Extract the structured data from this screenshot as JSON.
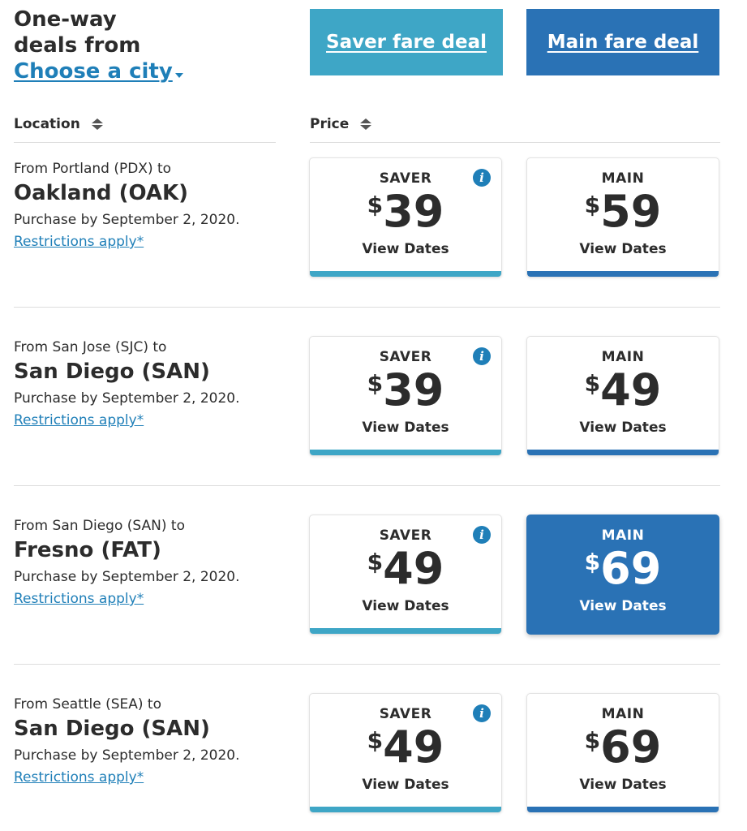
{
  "header": {
    "line1": "One-way",
    "line2": "deals from",
    "city_link": "Choose a city",
    "saver_button": "Saver fare deal",
    "main_button": "Main fare deal"
  },
  "columns": {
    "location": "Location",
    "price": "Price"
  },
  "deals": [
    {
      "from": "From Portland (PDX) to",
      "to": "Oakland (OAK)",
      "purchase": "Purchase by September 2, 2020.",
      "restrictions": "Restrictions apply*",
      "saver": {
        "label": "SAVER",
        "currency": "$",
        "price": "39",
        "dates": "View Dates"
      },
      "main": {
        "label": "MAIN",
        "currency": "$",
        "price": "59",
        "dates": "View Dates"
      }
    },
    {
      "from": "From San Jose (SJC) to",
      "to": "San Diego (SAN)",
      "purchase": "Purchase by September 2, 2020.",
      "restrictions": "Restrictions apply*",
      "saver": {
        "label": "SAVER",
        "currency": "$",
        "price": "39",
        "dates": "View Dates"
      },
      "main": {
        "label": "MAIN",
        "currency": "$",
        "price": "49",
        "dates": "View Dates"
      }
    },
    {
      "from": "From San Diego (SAN) to",
      "to": "Fresno (FAT)",
      "purchase": "Purchase by September 2, 2020.",
      "restrictions": "Restrictions apply*",
      "saver": {
        "label": "SAVER",
        "currency": "$",
        "price": "49",
        "dates": "View Dates"
      },
      "main": {
        "label": "MAIN",
        "currency": "$",
        "price": "69",
        "dates": "View Dates"
      }
    },
    {
      "from": "From Seattle (SEA) to",
      "to": "San Diego (SAN)",
      "purchase": "Purchase by September 2, 2020.",
      "restrictions": "Restrictions apply*",
      "saver": {
        "label": "SAVER",
        "currency": "$",
        "price": "49",
        "dates": "View Dates"
      },
      "main": {
        "label": "MAIN",
        "currency": "$",
        "price": "69",
        "dates": "View Dates"
      }
    }
  ],
  "colors": {
    "saver": "#3ea6c6",
    "main": "#2a72b5",
    "link": "#1f7fb8",
    "text": "#2c2c2c"
  },
  "icons": {
    "info": "info-icon",
    "sort": "sort-icon",
    "dropdown": "caret-down-icon"
  }
}
